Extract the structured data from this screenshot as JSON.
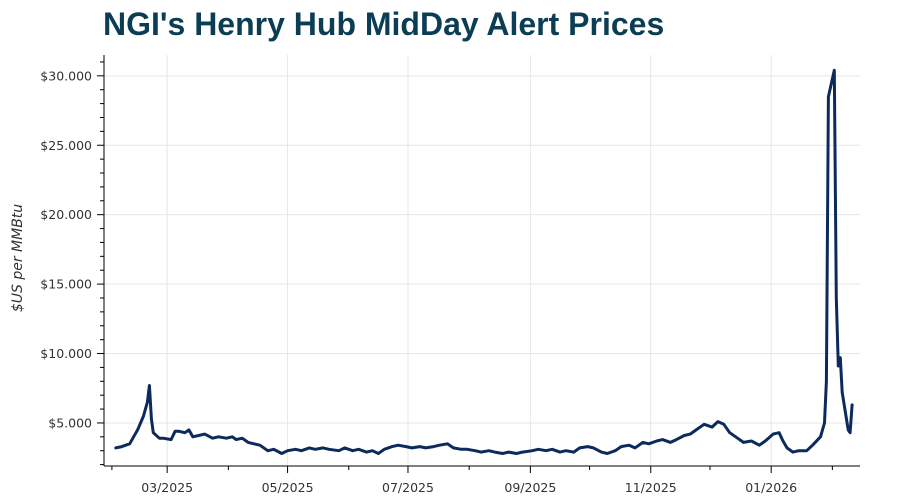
{
  "chart_data": {
    "type": "line",
    "title": "NGI's Henry Hub MidDay Alert Prices",
    "ylabel": "$US per MMBtu",
    "xlabel": "",
    "ylim": [
      1.9,
      31.5
    ],
    "xlim": [
      "2025-01-28",
      "2026-02-15"
    ],
    "grid": true,
    "yticks": [
      5,
      10,
      15,
      20,
      25,
      30
    ],
    "ytick_labels": [
      "$5.000",
      "$10.000",
      "$15.000",
      "$20.000",
      "$25.000",
      "$30.000"
    ],
    "xticks": [
      "2025-03-01",
      "2025-05-01",
      "2025-07-01",
      "2025-09-01",
      "2025-11-01",
      "2026-01-01"
    ],
    "xtick_labels": [
      "03/2025",
      "05/2025",
      "07/2025",
      "09/2025",
      "11/2025",
      "01/2026"
    ],
    "series": [
      {
        "color": "#0d2a5c",
        "points": [
          [
            "2025-02-03",
            3.2
          ],
          [
            "2025-02-06",
            3.3
          ],
          [
            "2025-02-10",
            3.5
          ],
          [
            "2025-02-12",
            4.0
          ],
          [
            "2025-02-14",
            4.5
          ],
          [
            "2025-02-17",
            5.5
          ],
          [
            "2025-02-19",
            6.5
          ],
          [
            "2025-02-20",
            7.7
          ],
          [
            "2025-02-21",
            5.3
          ],
          [
            "2025-02-22",
            4.3
          ],
          [
            "2025-02-25",
            3.9
          ],
          [
            "2025-02-27",
            3.9
          ],
          [
            "2025-03-03",
            3.8
          ],
          [
            "2025-03-05",
            4.4
          ],
          [
            "2025-03-07",
            4.4
          ],
          [
            "2025-03-10",
            4.3
          ],
          [
            "2025-03-12",
            4.5
          ],
          [
            "2025-03-14",
            4.0
          ],
          [
            "2025-03-17",
            4.1
          ],
          [
            "2025-03-20",
            4.2
          ],
          [
            "2025-03-24",
            3.9
          ],
          [
            "2025-03-27",
            4.0
          ],
          [
            "2025-03-31",
            3.9
          ],
          [
            "2025-04-03",
            4.0
          ],
          [
            "2025-04-05",
            3.8
          ],
          [
            "2025-04-08",
            3.9
          ],
          [
            "2025-04-11",
            3.6
          ],
          [
            "2025-04-14",
            3.5
          ],
          [
            "2025-04-17",
            3.4
          ],
          [
            "2025-04-21",
            3.0
          ],
          [
            "2025-04-24",
            3.1
          ],
          [
            "2025-04-28",
            2.8
          ],
          [
            "2025-05-01",
            3.0
          ],
          [
            "2025-05-05",
            3.1
          ],
          [
            "2025-05-08",
            3.0
          ],
          [
            "2025-05-12",
            3.2
          ],
          [
            "2025-05-15",
            3.1
          ],
          [
            "2025-05-19",
            3.2
          ],
          [
            "2025-05-22",
            3.1
          ],
          [
            "2025-05-27",
            3.0
          ],
          [
            "2025-05-30",
            3.2
          ],
          [
            "2025-06-03",
            3.0
          ],
          [
            "2025-06-06",
            3.1
          ],
          [
            "2025-06-10",
            2.9
          ],
          [
            "2025-06-13",
            3.0
          ],
          [
            "2025-06-16",
            2.8
          ],
          [
            "2025-06-19",
            3.1
          ],
          [
            "2025-06-23",
            3.3
          ],
          [
            "2025-06-26",
            3.4
          ],
          [
            "2025-06-30",
            3.3
          ],
          [
            "2025-07-03",
            3.2
          ],
          [
            "2025-07-07",
            3.3
          ],
          [
            "2025-07-10",
            3.2
          ],
          [
            "2025-07-14",
            3.3
          ],
          [
            "2025-07-17",
            3.4
          ],
          [
            "2025-07-21",
            3.5
          ],
          [
            "2025-07-24",
            3.2
          ],
          [
            "2025-07-28",
            3.1
          ],
          [
            "2025-07-31",
            3.1
          ],
          [
            "2025-08-04",
            3.0
          ],
          [
            "2025-08-07",
            2.9
          ],
          [
            "2025-08-11",
            3.0
          ],
          [
            "2025-08-14",
            2.9
          ],
          [
            "2025-08-18",
            2.8
          ],
          [
            "2025-08-21",
            2.9
          ],
          [
            "2025-08-25",
            2.8
          ],
          [
            "2025-08-28",
            2.9
          ],
          [
            "2025-09-02",
            3.0
          ],
          [
            "2025-09-05",
            3.1
          ],
          [
            "2025-09-09",
            3.0
          ],
          [
            "2025-09-12",
            3.1
          ],
          [
            "2025-09-16",
            2.9
          ],
          [
            "2025-09-19",
            3.0
          ],
          [
            "2025-09-23",
            2.9
          ],
          [
            "2025-09-26",
            3.2
          ],
          [
            "2025-09-30",
            3.3
          ],
          [
            "2025-10-03",
            3.2
          ],
          [
            "2025-10-07",
            2.9
          ],
          [
            "2025-10-10",
            2.8
          ],
          [
            "2025-10-14",
            3.0
          ],
          [
            "2025-10-17",
            3.3
          ],
          [
            "2025-10-21",
            3.4
          ],
          [
            "2025-10-24",
            3.2
          ],
          [
            "2025-10-28",
            3.6
          ],
          [
            "2025-10-31",
            3.5
          ],
          [
            "2025-11-04",
            3.7
          ],
          [
            "2025-11-07",
            3.8
          ],
          [
            "2025-11-11",
            3.6
          ],
          [
            "2025-11-14",
            3.8
          ],
          [
            "2025-11-18",
            4.1
          ],
          [
            "2025-11-21",
            4.2
          ],
          [
            "2025-11-25",
            4.6
          ],
          [
            "2025-11-28",
            4.9
          ],
          [
            "2025-12-02",
            4.7
          ],
          [
            "2025-12-05",
            5.1
          ],
          [
            "2025-12-08",
            4.9
          ],
          [
            "2025-12-11",
            4.3
          ],
          [
            "2025-12-15",
            3.9
          ],
          [
            "2025-12-18",
            3.6
          ],
          [
            "2025-12-22",
            3.7
          ],
          [
            "2025-12-26",
            3.4
          ],
          [
            "2025-12-29",
            3.7
          ],
          [
            "2026-01-02",
            4.2
          ],
          [
            "2026-01-05",
            4.3
          ],
          [
            "2026-01-07",
            3.7
          ],
          [
            "2026-01-09",
            3.2
          ],
          [
            "2026-01-12",
            2.9
          ],
          [
            "2026-01-15",
            3.0
          ],
          [
            "2026-01-19",
            3.0
          ],
          [
            "2026-01-22",
            3.4
          ],
          [
            "2026-01-26",
            4.0
          ],
          [
            "2026-01-28",
            5.0
          ],
          [
            "2026-01-29",
            8.0
          ],
          [
            "2026-01-30",
            28.5
          ],
          [
            "2026-02-02",
            30.4
          ],
          [
            "2026-02-03",
            14.0
          ],
          [
            "2026-02-04",
            9.1
          ],
          [
            "2026-02-05",
            9.7
          ],
          [
            "2026-02-06",
            7.2
          ],
          [
            "2026-02-09",
            4.5
          ],
          [
            "2026-02-10",
            4.3
          ],
          [
            "2026-02-11",
            6.3
          ]
        ]
      }
    ]
  }
}
